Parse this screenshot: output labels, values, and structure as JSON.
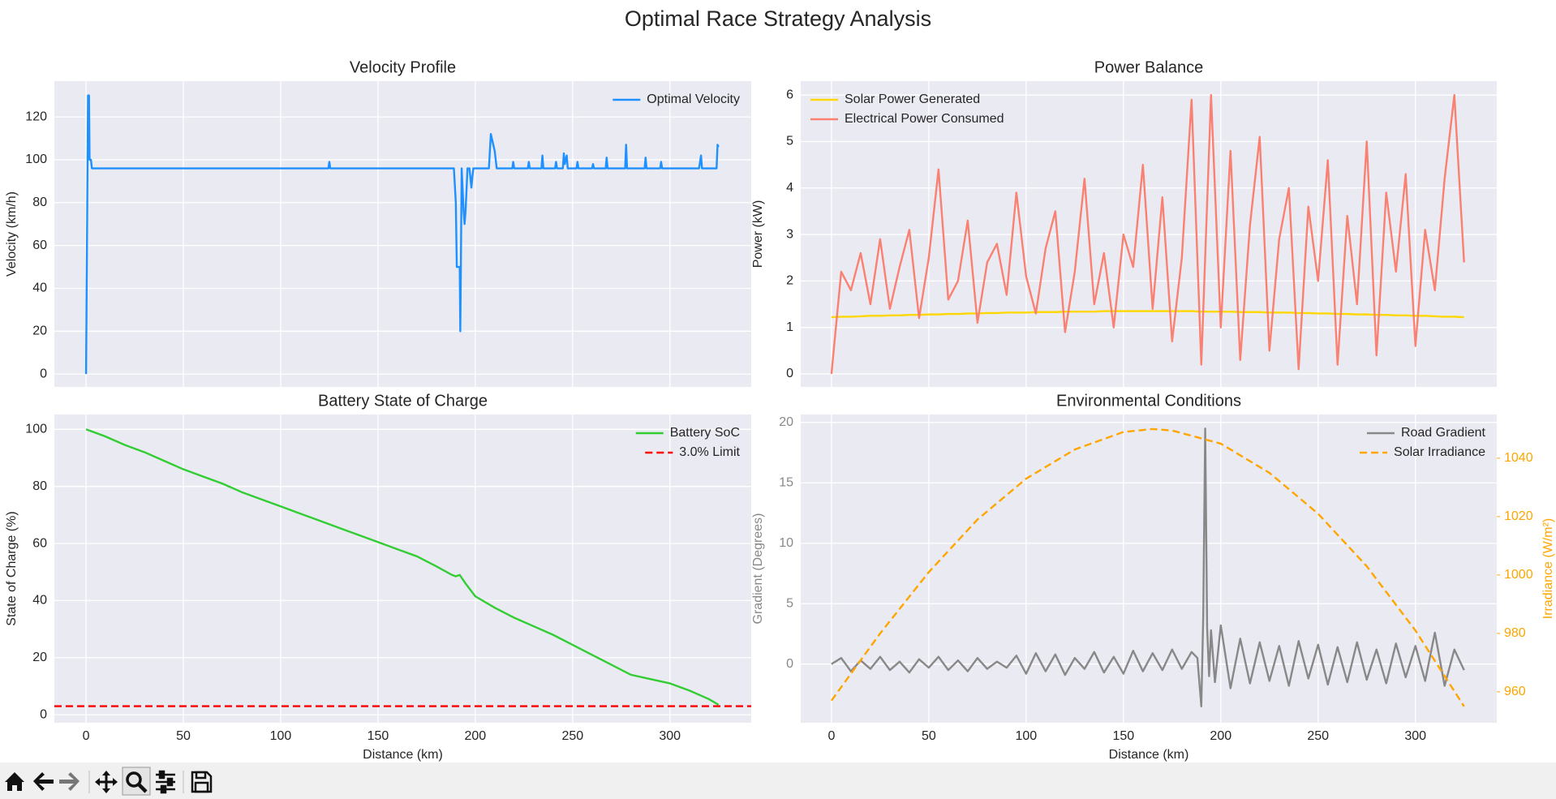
{
  "title": "Optimal Race Strategy Analysis",
  "chart_data": [
    {
      "type": "line",
      "title": "Velocity Profile",
      "ylabel": "Velocity (km/h)",
      "legend": "upper right",
      "grid": true,
      "xlim": [
        -16.3,
        341.8
      ],
      "xticks": [
        0,
        50,
        100,
        150,
        200,
        250,
        300
      ],
      "ylim": [
        -6,
        136.7
      ],
      "yticks": [
        0,
        20,
        40,
        60,
        80,
        100,
        120
      ],
      "x": [
        0,
        1,
        1.5,
        1.8,
        2.5,
        3,
        124.5,
        125,
        125.5,
        189,
        190,
        190.5,
        192,
        192.3,
        192.6,
        193,
        194,
        194.5,
        195,
        196,
        197,
        198,
        198.5,
        199,
        207,
        208,
        209,
        210,
        211,
        219,
        219.5,
        220,
        227,
        227.5,
        228,
        234,
        234.5,
        235,
        241,
        241.5,
        242,
        245,
        245.5,
        246,
        247,
        247.5,
        252,
        252.5,
        253,
        260,
        260.5,
        261,
        267,
        267.5,
        268,
        277,
        277.5,
        278,
        287,
        287.5,
        288,
        295,
        295.5,
        296,
        315,
        316,
        316.5,
        324,
        324.5,
        325
      ],
      "series": [
        {
          "name": "Optimal Velocity",
          "color": "#1e90ff",
          "values": [
            0,
            130,
            130,
            100,
            100,
            96,
            96,
            99,
            96,
            96,
            80,
            50,
            50,
            20,
            50,
            96,
            76,
            70,
            76,
            96,
            96,
            87,
            92,
            96,
            96,
            112,
            108,
            104,
            96,
            96,
            99,
            96,
            96,
            99,
            96,
            96,
            102,
            96,
            96,
            99,
            96,
            96,
            103,
            98,
            102,
            96,
            96,
            99,
            96,
            96,
            98,
            96,
            96,
            101,
            96,
            96,
            107,
            96,
            96,
            101,
            96,
            96,
            99,
            96,
            96,
            102,
            96,
            96,
            107,
            106
          ]
        }
      ]
    },
    {
      "type": "line",
      "title": "Power Balance",
      "ylabel": "Power (kW)",
      "legend": "upper left",
      "grid": true,
      "xlim": [
        -15.8,
        341.8
      ],
      "xticks": [
        0,
        50,
        100,
        150,
        200,
        250,
        300
      ],
      "ylim": [
        -0.28,
        6.3
      ],
      "yticks": [
        0,
        1,
        2,
        3,
        4,
        5,
        6
      ],
      "x": [
        0,
        5,
        10,
        15,
        20,
        25,
        30,
        35,
        40,
        45,
        50,
        55,
        60,
        65,
        70,
        75,
        80,
        85,
        90,
        95,
        100,
        105,
        110,
        115,
        120,
        125,
        130,
        135,
        140,
        145,
        150,
        155,
        160,
        165,
        170,
        175,
        180,
        185,
        190,
        195,
        200,
        205,
        210,
        215,
        220,
        225,
        230,
        235,
        240,
        245,
        250,
        255,
        260,
        265,
        270,
        275,
        280,
        285,
        290,
        295,
        300,
        305,
        310,
        315,
        320,
        325
      ],
      "series": [
        {
          "name": "Solar Power Generated",
          "color": "#ffd700",
          "values": [
            1.22,
            1.23,
            1.23,
            1.24,
            1.25,
            1.25,
            1.26,
            1.26,
            1.27,
            1.27,
            1.28,
            1.28,
            1.29,
            1.29,
            1.3,
            1.3,
            1.31,
            1.31,
            1.32,
            1.32,
            1.32,
            1.33,
            1.33,
            1.33,
            1.34,
            1.34,
            1.34,
            1.34,
            1.35,
            1.35,
            1.35,
            1.35,
            1.35,
            1.35,
            1.35,
            1.35,
            1.35,
            1.35,
            1.34,
            1.34,
            1.34,
            1.34,
            1.33,
            1.33,
            1.33,
            1.32,
            1.32,
            1.32,
            1.31,
            1.31,
            1.3,
            1.3,
            1.29,
            1.29,
            1.28,
            1.28,
            1.27,
            1.27,
            1.26,
            1.26,
            1.25,
            1.25,
            1.24,
            1.23,
            1.23,
            1.22
          ]
        },
        {
          "name": "Electrical Power Consumed",
          "color": "#fa8072",
          "values": [
            0,
            2.2,
            1.8,
            2.6,
            1.5,
            2.9,
            1.4,
            2.3,
            3.1,
            1.2,
            2.5,
            4.4,
            1.6,
            2.0,
            3.3,
            1.1,
            2.4,
            2.8,
            1.7,
            3.9,
            2.1,
            1.3,
            2.7,
            3.5,
            0.9,
            2.2,
            4.2,
            1.5,
            2.6,
            1.0,
            3.0,
            2.3,
            4.5,
            1.4,
            3.8,
            0.7,
            2.5,
            5.9,
            0.2,
            6.0,
            1.0,
            4.8,
            0.3,
            3.2,
            5.1,
            0.5,
            2.9,
            4.0,
            0.1,
            3.6,
            2.0,
            4.6,
            0.2,
            3.4,
            1.5,
            5.0,
            0.4,
            3.9,
            2.2,
            4.3,
            0.6,
            3.1,
            1.8,
            4.2,
            6.0,
            2.4
          ]
        }
      ]
    },
    {
      "type": "line",
      "title": "Battery State of Charge",
      "xlabel": "Distance (km)",
      "ylabel": "State of Charge (%)",
      "legend": "upper right",
      "grid": true,
      "xlim": [
        -16.3,
        341.8
      ],
      "xticks": [
        0,
        50,
        100,
        150,
        200,
        250,
        300
      ],
      "ylim": [
        -2.8,
        105.2
      ],
      "yticks": [
        0,
        20,
        40,
        60,
        80,
        100
      ],
      "x": [
        0,
        10,
        20,
        30,
        40,
        50,
        60,
        70,
        80,
        90,
        100,
        110,
        120,
        130,
        140,
        150,
        160,
        170,
        180,
        188,
        190,
        192,
        195,
        200,
        210,
        220,
        230,
        240,
        250,
        260,
        270,
        280,
        290,
        300,
        310,
        320,
        325
      ],
      "series": [
        {
          "name": "Battery SoC",
          "color": "#32cd32",
          "values": [
            100,
            97.5,
            94.5,
            92,
            89,
            86,
            83.5,
            81,
            78,
            75.5,
            73,
            70.5,
            68,
            65.5,
            63,
            60.5,
            58,
            55.5,
            52,
            49,
            48.5,
            49,
            46,
            41.5,
            37.5,
            34,
            31,
            28,
            24.5,
            21,
            17.5,
            14,
            12.5,
            11,
            8.5,
            5.5,
            3.5
          ]
        }
      ],
      "hlines": [
        {
          "name": "3.0% Limit",
          "value": 3,
          "color": "#ff0000",
          "linestyle": "dashed"
        }
      ]
    },
    {
      "type": "line",
      "title": "Environmental Conditions",
      "xlabel": "Distance (km)",
      "ylabel": "Gradient (Degrees)",
      "y2label": "Irradiance (W/m²)",
      "legend": "upper right",
      "grid": true,
      "xlim": [
        -15.8,
        341.8
      ],
      "xticks": [
        0,
        50,
        100,
        150,
        200,
        250,
        300
      ],
      "ylim": [
        -4.86,
        20.66
      ],
      "yticks": [
        0,
        5,
        10,
        15,
        20
      ],
      "y2lim": [
        949.4,
        1054.98
      ],
      "y2ticks": [
        960,
        980,
        1000,
        1020,
        1040
      ],
      "series": [
        {
          "name": "Road Gradient",
          "color": "#888888",
          "x": [
            0,
            5,
            10,
            15,
            20,
            25,
            30,
            35,
            40,
            45,
            50,
            55,
            60,
            65,
            70,
            75,
            80,
            85,
            90,
            95,
            100,
            105,
            110,
            115,
            120,
            125,
            130,
            135,
            140,
            145,
            150,
            155,
            160,
            165,
            170,
            175,
            180,
            185,
            188,
            190,
            191,
            192,
            193,
            194,
            195,
            197,
            200,
            205,
            210,
            215,
            220,
            225,
            230,
            235,
            240,
            245,
            250,
            255,
            260,
            265,
            270,
            275,
            280,
            285,
            290,
            295,
            300,
            305,
            310,
            315,
            320,
            325
          ],
          "values": [
            0,
            0.5,
            -0.6,
            0.3,
            -0.4,
            0.6,
            -0.5,
            0.2,
            -0.7,
            0.4,
            -0.3,
            0.6,
            -0.5,
            0.3,
            -0.6,
            0.5,
            -0.4,
            0.2,
            -0.3,
            0.7,
            -0.8,
            0.9,
            -0.6,
            0.8,
            -0.9,
            0.5,
            -0.4,
            1.0,
            -0.7,
            0.6,
            -0.8,
            1.1,
            -0.6,
            0.9,
            -0.5,
            1.2,
            -0.4,
            1.0,
            0.5,
            -3.5,
            4,
            19.5,
            3,
            -1,
            2.8,
            -1.5,
            3.2,
            -2,
            2.1,
            -1.6,
            1.8,
            -1.4,
            1.5,
            -1.8,
            1.9,
            -1.2,
            1.6,
            -1.7,
            1.4,
            -1.5,
            1.8,
            -1.3,
            1.2,
            -1.6,
            1.7,
            -1.1,
            1.5,
            -1.4,
            2.6,
            -1.8,
            1.2,
            -0.5
          ]
        },
        {
          "name": "Solar Irradiance",
          "color": "#ffa500",
          "axis": "y2",
          "linestyle": "dashed",
          "x": [
            0,
            25,
            50,
            75,
            100,
            125,
            150,
            165,
            175,
            200,
            225,
            250,
            275,
            300,
            325
          ],
          "values": [
            957,
            980,
            1001,
            1019,
            1033,
            1043,
            1049,
            1050,
            1049.5,
            1045,
            1035,
            1021,
            1003,
            981,
            955
          ]
        }
      ]
    }
  ]
}
